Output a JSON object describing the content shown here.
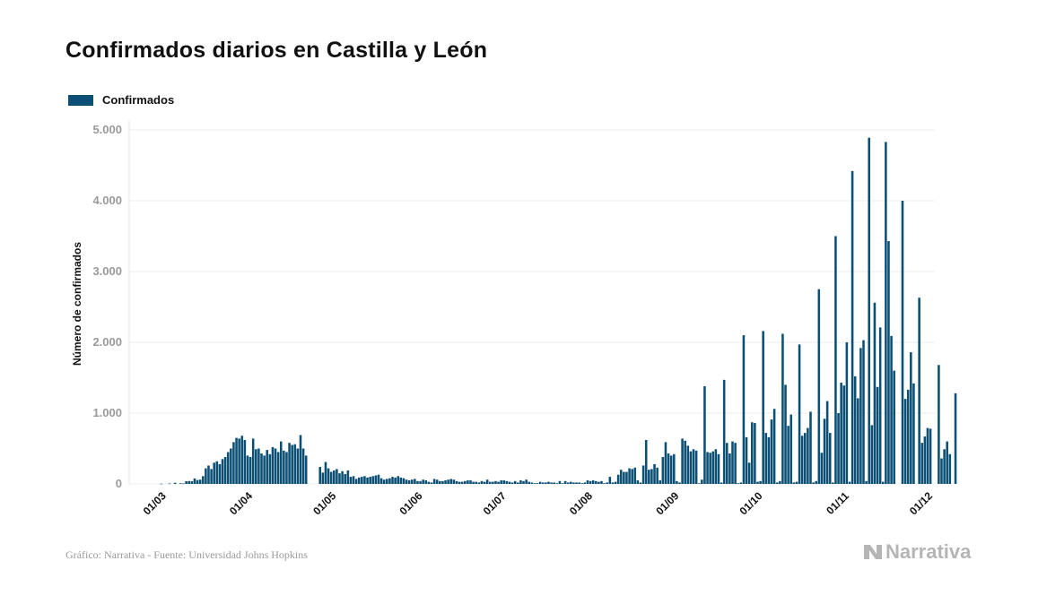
{
  "chart_data": {
    "type": "bar",
    "title": "Confirmados diarios en Castilla y León",
    "ylabel": "Número de confirmados",
    "legend": "Confirmados",
    "legend_position": "top-left",
    "grid": true,
    "ylim": [
      0,
      5000
    ],
    "y_ticks": [
      "0",
      "1.000",
      "2.000",
      "3.000",
      "4.000",
      "5.000"
    ],
    "x_ticks": [
      "01/03",
      "01/04",
      "01/05",
      "01/06",
      "01/07",
      "01/08",
      "01/09",
      "01/10",
      "01/11",
      "01/12"
    ],
    "bar_color": "#0b4f74",
    "start_date": "2020-02-20",
    "series": [
      {
        "name": "Confirmados",
        "values": [
          0,
          0,
          0,
          0,
          0,
          0,
          0,
          0,
          0,
          0,
          3,
          0,
          0,
          6,
          0,
          16,
          0,
          10,
          6,
          38,
          40,
          37,
          78,
          54,
          60,
          110,
          220,
          260,
          210,
          300,
          320,
          280,
          350,
          380,
          450,
          500,
          590,
          650,
          640,
          680,
          620,
          400,
          380,
          640,
          490,
          500,
          430,
          400,
          480,
          420,
          520,
          500,
          450,
          600,
          470,
          450,
          580,
          550,
          560,
          500,
          690,
          500,
          400,
          0,
          0,
          0,
          0,
          240,
          160,
          310,
          220,
          170,
          190,
          210,
          150,
          180,
          140,
          190,
          100,
          110,
          70,
          90,
          100,
          110,
          90,
          100,
          110,
          120,
          130,
          80,
          60,
          70,
          80,
          100,
          90,
          110,
          90,
          80,
          60,
          50,
          60,
          70,
          40,
          40,
          60,
          50,
          30,
          20,
          70,
          60,
          40,
          40,
          50,
          60,
          70,
          60,
          40,
          30,
          30,
          40,
          50,
          50,
          30,
          30,
          20,
          40,
          30,
          60,
          30,
          30,
          40,
          30,
          50,
          50,
          40,
          30,
          20,
          40,
          20,
          50,
          40,
          60,
          30,
          20,
          10,
          10,
          30,
          20,
          20,
          30,
          20,
          20,
          10,
          40,
          10,
          40,
          20,
          30,
          20,
          20,
          20,
          10,
          20,
          50,
          40,
          50,
          40,
          30,
          40,
          10,
          20,
          100,
          20,
          30,
          130,
          200,
          170,
          170,
          220,
          210,
          230,
          50,
          20,
          260,
          620,
          200,
          210,
          280,
          230,
          50,
          380,
          590,
          430,
          400,
          420,
          40,
          20,
          640,
          610,
          540,
          460,
          490,
          470,
          10,
          60,
          1380,
          450,
          440,
          460,
          490,
          420,
          20,
          1470,
          580,
          430,
          600,
          580,
          10,
          20,
          2100,
          660,
          300,
          870,
          860,
          30,
          40,
          2160,
          720,
          660,
          910,
          1060,
          20,
          40,
          2120,
          1400,
          820,
          980,
          20,
          30,
          1970,
          680,
          720,
          790,
          1020,
          20,
          40,
          2750,
          440,
          920,
          1170,
          720,
          20,
          3500,
          1000,
          1430,
          1390,
          2000,
          30,
          4420,
          1520,
          1210,
          1920,
          2030,
          40,
          4890,
          830,
          2560,
          1370,
          2210,
          30,
          4830,
          3430,
          2090,
          1600,
          0,
          0,
          4000,
          1200,
          1330,
          1860,
          1420,
          0,
          2630,
          580,
          670,
          790,
          780,
          0,
          0,
          1680,
          360,
          490,
          600,
          420,
          0,
          1280
        ]
      }
    ]
  },
  "footer": {
    "source": "Gráfico: Narrativa - Fuente: Universidad Johns Hopkins",
    "brand": "Narrativa"
  }
}
